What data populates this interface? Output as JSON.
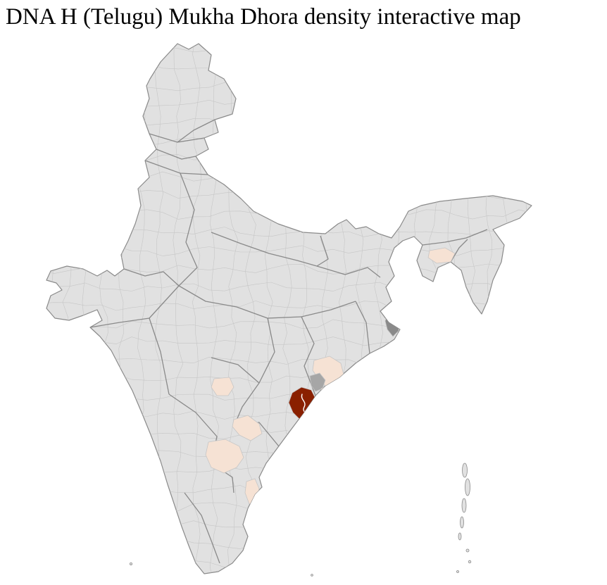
{
  "page": {
    "title": "DNA H (Telugu) Mukha Dhora density interactive map"
  },
  "map": {
    "label": "India district-level density choropleth map",
    "colors": {
      "land": "#e1e1e1",
      "district_border": "#c6c6c6",
      "state_border": "#858585",
      "outline": "#8a8a8a",
      "sea": "#ffffff",
      "density_low": "#f6e2d4",
      "density_mid": "#f1d5c2",
      "density_high": "#8a2000",
      "neutral_mid": "#a6a6a6",
      "neutral_dark": "#8a8a8a",
      "detail_line": "#ffffff"
    },
    "legend_levels": [
      "low",
      "mid",
      "high"
    ],
    "regions": [
      {
        "id": "hotspot-core",
        "level": "high"
      },
      {
        "id": "hotspot-neighbor-gray",
        "level": "neutral-mid"
      },
      {
        "id": "hotspot-north-cluster",
        "level": "low"
      },
      {
        "id": "hotspot-coast-small",
        "level": "low"
      },
      {
        "id": "inland-west-patch",
        "level": "low"
      },
      {
        "id": "inland-band-patch",
        "level": "low"
      },
      {
        "id": "south-inland-patch",
        "level": "low"
      },
      {
        "id": "south-coast-strip",
        "level": "low"
      },
      {
        "id": "northeast-patch",
        "level": "low"
      },
      {
        "id": "east-metro-gray",
        "level": "neutral-dark"
      }
    ]
  }
}
